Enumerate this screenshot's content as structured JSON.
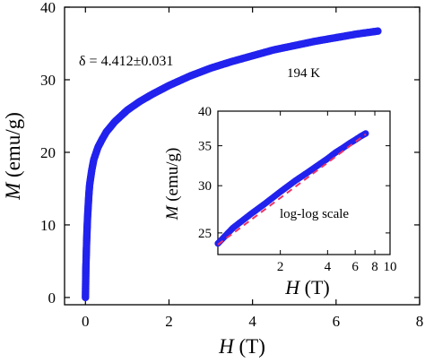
{
  "chart_data": [
    {
      "type": "scatter",
      "title": "",
      "xlabel": "H (T)",
      "ylabel": "M (emu/g)",
      "xlabel_parts": {
        "symbol": "H",
        "unit": "(T)"
      },
      "ylabel_parts": {
        "symbol": "M",
        "unit": "(emu/g)"
      },
      "xlim": [
        -0.5,
        8
      ],
      "ylim": [
        -1,
        40
      ],
      "xticks": [
        0,
        2,
        4,
        6,
        8
      ],
      "yticks": [
        0,
        10,
        20,
        30,
        40
      ],
      "grid": false,
      "marker_color": "#2222ee",
      "annotations": [
        {
          "text": "δ = 4.412±0.031"
        },
        {
          "text": "194 K"
        }
      ],
      "series": [
        {
          "x": [
            0.0,
            0.01,
            0.03,
            0.05,
            0.08,
            0.1,
            0.15,
            0.2,
            0.3,
            0.4,
            0.5,
            0.7,
            1.0,
            1.3,
            1.6,
            2.0,
            2.5,
            3.0,
            3.5,
            4.0,
            4.5,
            5.0,
            5.5,
            6.0,
            6.5,
            7.0
          ],
          "y": [
            0.0,
            4.0,
            8.0,
            11.0,
            14.0,
            15.5,
            17.5,
            19.0,
            20.7,
            21.8,
            22.8,
            24.2,
            25.8,
            27.0,
            28.0,
            29.2,
            30.5,
            31.6,
            32.5,
            33.3,
            34.1,
            34.7,
            35.3,
            35.8,
            36.3,
            36.7
          ]
        }
      ]
    },
    {
      "type": "line",
      "title": "",
      "xlabel": "H (T)",
      "ylabel": "M (emu/g)",
      "xlabel_parts": {
        "symbol": "H",
        "unit": "(T)"
      },
      "ylabel_parts": {
        "symbol": "M",
        "unit": "(emu/g)"
      },
      "xscale": "log",
      "yscale": "log",
      "xlim": [
        0.8,
        10
      ],
      "ylim": [
        23,
        40
      ],
      "xticks": [
        2,
        4,
        6,
        8,
        10
      ],
      "yticks": [
        25,
        30,
        35,
        40
      ],
      "grid": false,
      "annotations": [
        {
          "text": "log-log scale"
        }
      ],
      "series": [
        {
          "style": "markers",
          "color": "#2222ee",
          "x": [
            0.8,
            1.0,
            1.3,
            1.6,
            2.0,
            2.5,
            3.0,
            3.5,
            4.0,
            4.5,
            5.0,
            5.5,
            6.0,
            6.5,
            7.0
          ],
          "y": [
            24.0,
            25.5,
            26.9,
            28.0,
            29.3,
            30.6,
            31.6,
            32.5,
            33.3,
            34.1,
            34.7,
            35.3,
            35.8,
            36.3,
            36.7
          ]
        },
        {
          "style": "dashed-fit",
          "color": "#ee3366",
          "x": [
            0.8,
            7.0
          ],
          "y": [
            23.9,
            36.6
          ]
        }
      ]
    }
  ]
}
